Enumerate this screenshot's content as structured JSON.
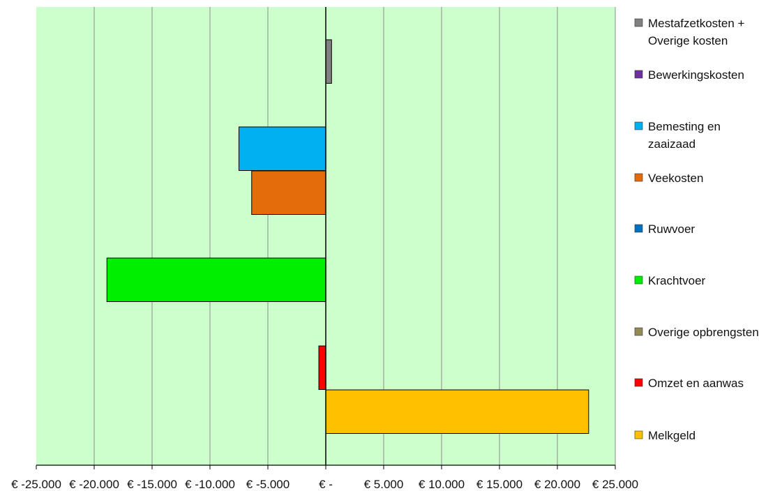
{
  "chart_data": {
    "type": "bar",
    "orientation": "horizontal",
    "grid": true,
    "legend_placement": "right",
    "plot_background": "#ccffcc",
    "xlim": [
      -25000,
      25000
    ],
    "x_ticks": [
      -25000,
      -20000,
      -15000,
      -10000,
      -5000,
      0,
      5000,
      10000,
      15000,
      20000,
      25000
    ],
    "x_tick_labels": [
      "€ -25.000",
      "€ -20.000",
      "€ -15.000",
      "€ -10.000",
      "€ -5.000",
      "€ -",
      "€ 5.000",
      "€ 10.000",
      "€ 15.000",
      "€ 20.000",
      "€ 25.000"
    ],
    "series": [
      {
        "name": "Mestafzetkosten + Overige kosten",
        "value": 500,
        "color": "#808080"
      },
      {
        "name": "Bewerkingskosten",
        "value": 0,
        "color": "#7030a0"
      },
      {
        "name": "Bemesting en zaaizaad",
        "value": -7500,
        "color": "#00b0f0"
      },
      {
        "name": "Veekosten",
        "value": -6400,
        "color": "#e46c0a"
      },
      {
        "name": "Ruwvoer",
        "value": 0,
        "color": "#0070c0"
      },
      {
        "name": "Krachtvoer",
        "value": -18900,
        "color": "#00ee00"
      },
      {
        "name": "Overige opbrengsten",
        "value": 0,
        "color": "#948a54"
      },
      {
        "name": "Omzet en aanwas",
        "value": -600,
        "color": "#ff0000"
      },
      {
        "name": "Melkgeld",
        "value": 22700,
        "color": "#ffc000"
      }
    ],
    "legend": [
      {
        "lines": [
          "Mestafzetkosten +",
          "Overige kosten"
        ],
        "color": "#808080"
      },
      {
        "lines": [
          "Bewerkingskosten"
        ],
        "color": "#7030a0"
      },
      {
        "lines": [
          "Bemesting en",
          "zaaizaad"
        ],
        "color": "#00b0f0"
      },
      {
        "lines": [
          "Veekosten"
        ],
        "color": "#e46c0a"
      },
      {
        "lines": [
          "Ruwvoer"
        ],
        "color": "#0070c0"
      },
      {
        "lines": [
          "Krachtvoer"
        ],
        "color": "#00ee00"
      },
      {
        "lines": [
          "Overige opbrengsten"
        ],
        "color": "#948a54"
      },
      {
        "lines": [
          "Omzet en aanwas"
        ],
        "color": "#ff0000"
      },
      {
        "lines": [
          "Melkgeld"
        ],
        "color": "#ffc000"
      }
    ]
  }
}
